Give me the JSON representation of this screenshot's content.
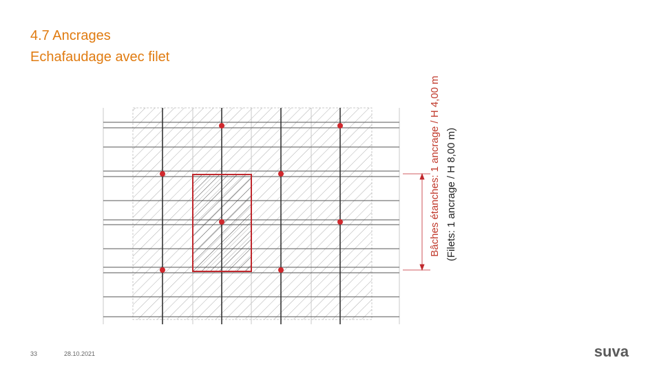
{
  "header": {
    "title_line1": "4.7 Ancrages",
    "title_line2": "Echafaudage avec filet"
  },
  "diagram": {
    "label_tarps": "Bâches étanches: 1 ancrage / H 4,00 m",
    "label_nets": "(Filets: 1 ancrage / H 8,00 m)"
  },
  "footer": {
    "page": "33",
    "date": "28.10.2021",
    "logo": "suva"
  }
}
